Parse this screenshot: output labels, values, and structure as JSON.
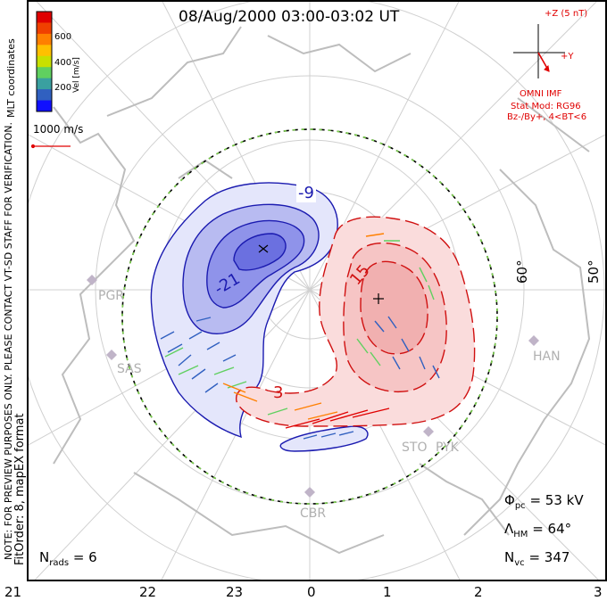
{
  "title": "08/Aug/2000 03:00-03:02 UT",
  "colorbar": {
    "label": "Vel [m/s]",
    "ticks": [
      "600",
      "400",
      "200"
    ],
    "colors": [
      "#e00000",
      "#f04000",
      "#ff8000",
      "#ffc000",
      "#c8e000",
      "#60d060",
      "#3aa0a0",
      "#3060c0",
      "#1010ff"
    ]
  },
  "coord_label": "MLT coordinates",
  "watermark": "NOTE: FOR PREVIEW PURPOSES ONLY. PLEASE CONTACT VT-SD STAFF FOR VERIFICATION.",
  "fit_label": "FitOrder: 8, mapEX format",
  "scale_vector": "1000 m/s",
  "imf": {
    "bz_label": "+Z (5 nT)",
    "by_label": "+Y",
    "source": "OMNI IMF",
    "model_line1": "Stat Mod: RG96",
    "model_line2": "Bz-/By+, 4<BT<6"
  },
  "lat_labels": [
    "60°",
    "50°"
  ],
  "stations": [
    "PGR",
    "SAS",
    "HAN",
    "STO",
    "PYK",
    "CBR"
  ],
  "contour_labels": [
    "-9",
    "-21",
    "15",
    "3"
  ],
  "stats": {
    "phi_pc": "Φ",
    "phi_pc_sub": "pc",
    "phi_pc_value": "= 53 kV",
    "lambda_hm": "Λ",
    "lambda_hm_sub": "HM",
    "lambda_hm_value": "= 64°",
    "n_vc": "N",
    "n_vc_sub": "vc",
    "n_vc_value": "= 347",
    "n_rads": "N",
    "n_rads_sub": "rads",
    "n_rads_value": "= 6"
  },
  "mlt_labels": [
    "21",
    "22",
    "23",
    "0",
    "1",
    "2",
    "3"
  ]
}
